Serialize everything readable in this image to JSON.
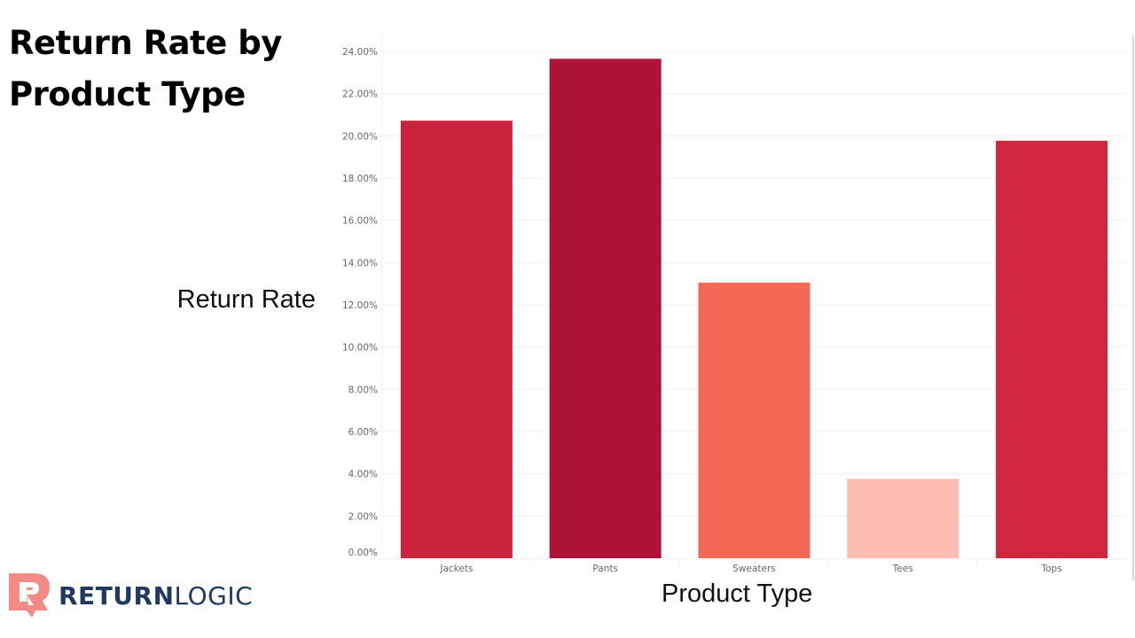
{
  "title": "Return Rate by Product Type",
  "brand": {
    "name_bold": "RETURN",
    "name_light": "LOGIC",
    "icon": "r-return-arrow-logo",
    "colors": {
      "icon": "#f28b86",
      "text": "#22395f"
    }
  },
  "chart_data": {
    "type": "bar",
    "title": "Return Rate by Product Type",
    "xlabel": "Product Type",
    "ylabel": "Return Rate",
    "categories": [
      "Jackets",
      "Pants",
      "Sweaters",
      "Tees",
      "Tops"
    ],
    "values": [
      20.72,
      23.65,
      13.05,
      3.76,
      19.77
    ],
    "unit": "%",
    "colors": [
      "#cb233d",
      "#ad1339",
      "#f26a56",
      "#fdbcb1",
      "#d1263f"
    ],
    "ylim": [
      0,
      24
    ],
    "yticks": [
      "0.00%",
      "2.00%",
      "4.00%",
      "6.00%",
      "8.00%",
      "10.00%",
      "12.00%",
      "14.00%",
      "16.00%",
      "18.00%",
      "20.00%",
      "22.00%",
      "24.00%"
    ],
    "grid": true,
    "legend": "none"
  }
}
